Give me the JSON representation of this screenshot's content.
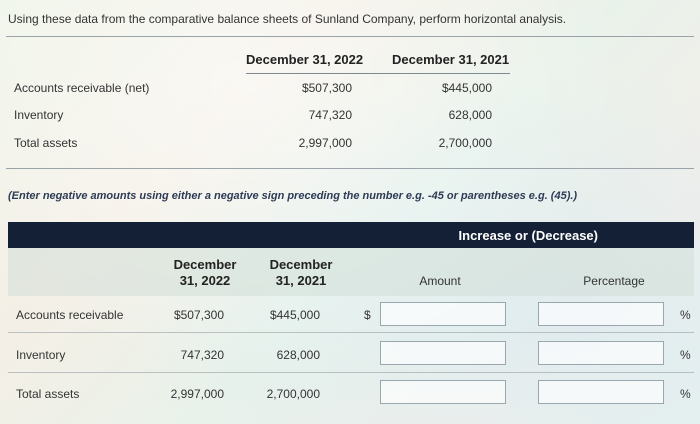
{
  "instructions": "Using these data from the comparative balance sheets of Sunland Company, perform horizontal analysis.",
  "data_table": {
    "headers": [
      "December 31, 2022",
      "December 31, 2021"
    ],
    "rows": [
      {
        "label": "Accounts receivable (net)",
        "v2022": "$507,300",
        "v2021": "$445,000"
      },
      {
        "label": "Inventory",
        "v2022": "747,320",
        "v2021": "628,000"
      },
      {
        "label": "Total assets",
        "v2022": "2,997,000",
        "v2021": "2,700,000"
      }
    ]
  },
  "note": "(Enter negative amounts using either a negative sign preceding the number e.g. -45 or parentheses e.g. (45).)",
  "answer_table": {
    "banner": "Increase or (Decrease)",
    "col_2022": [
      "December",
      "31, 2022"
    ],
    "col_2021": [
      "December",
      "31, 2021"
    ],
    "col_amount": "Amount",
    "col_percentage": "Percentage",
    "dollar_sign": "$",
    "percent_sign": "%",
    "rows": [
      {
        "label": "Accounts receivable",
        "v2022": "$507,300",
        "v2021": "$445,000",
        "amount": "",
        "percentage": ""
      },
      {
        "label": "Inventory",
        "v2022": "747,320",
        "v2021": "628,000",
        "amount": "",
        "percentage": ""
      },
      {
        "label": "Total assets",
        "v2022": "2,997,000",
        "v2021": "2,700,000",
        "amount": "",
        "percentage": ""
      }
    ]
  }
}
